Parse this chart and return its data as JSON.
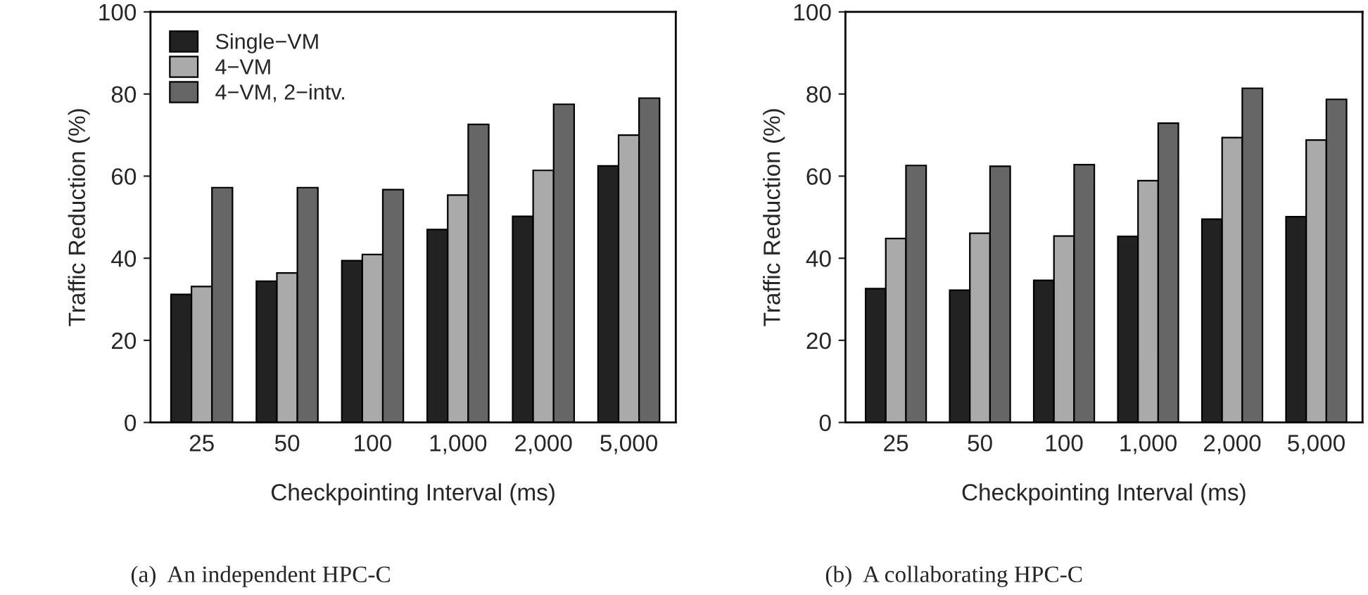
{
  "chart_data": [
    {
      "type": "bar",
      "xlabel": "Checkpointing Interval (ms)",
      "ylabel": "Traffic Reduction (%)",
      "categories": [
        "25",
        "50",
        "100",
        "1,000",
        "2,000",
        "5,000"
      ],
      "ylim": [
        0,
        100
      ],
      "yticks": [
        0,
        20,
        40,
        60,
        80,
        100
      ],
      "legend": "top left",
      "annotations": [
        "(a)  An independent HPC-C"
      ],
      "series": [
        {
          "name": "Single−VM",
          "color": "#222222",
          "values": [
            31.2,
            34.4,
            39.4,
            47.0,
            50.2,
            62.5
          ]
        },
        {
          "name": "4−VM",
          "color": "#aaaaaa",
          "values": [
            33.1,
            36.4,
            40.9,
            55.4,
            61.4,
            70.0
          ]
        },
        {
          "name": "4−VM, 2−intv.",
          "color": "#666666",
          "values": [
            57.2,
            57.2,
            56.7,
            72.6,
            77.5,
            79.0
          ]
        }
      ]
    },
    {
      "type": "bar",
      "xlabel": "Checkpointing Interval (ms)",
      "ylabel": "Traffic Reduction (%)",
      "categories": [
        "25",
        "50",
        "100",
        "1,000",
        "2,000",
        "5,000"
      ],
      "ylim": [
        0,
        100
      ],
      "yticks": [
        0,
        20,
        40,
        60,
        80,
        100
      ],
      "annotations": [
        "(b)  A collaborating HPC-C"
      ],
      "series": [
        {
          "color": "#222222",
          "values": [
            32.6,
            32.2,
            34.6,
            45.3,
            49.5,
            50.1
          ]
        },
        {
          "color": "#aaaaaa",
          "values": [
            44.8,
            46.1,
            45.4,
            58.9,
            69.4,
            68.8
          ]
        },
        {
          "color": "#666666",
          "values": [
            62.6,
            62.4,
            62.8,
            72.9,
            81.4,
            78.7
          ]
        }
      ]
    }
  ]
}
